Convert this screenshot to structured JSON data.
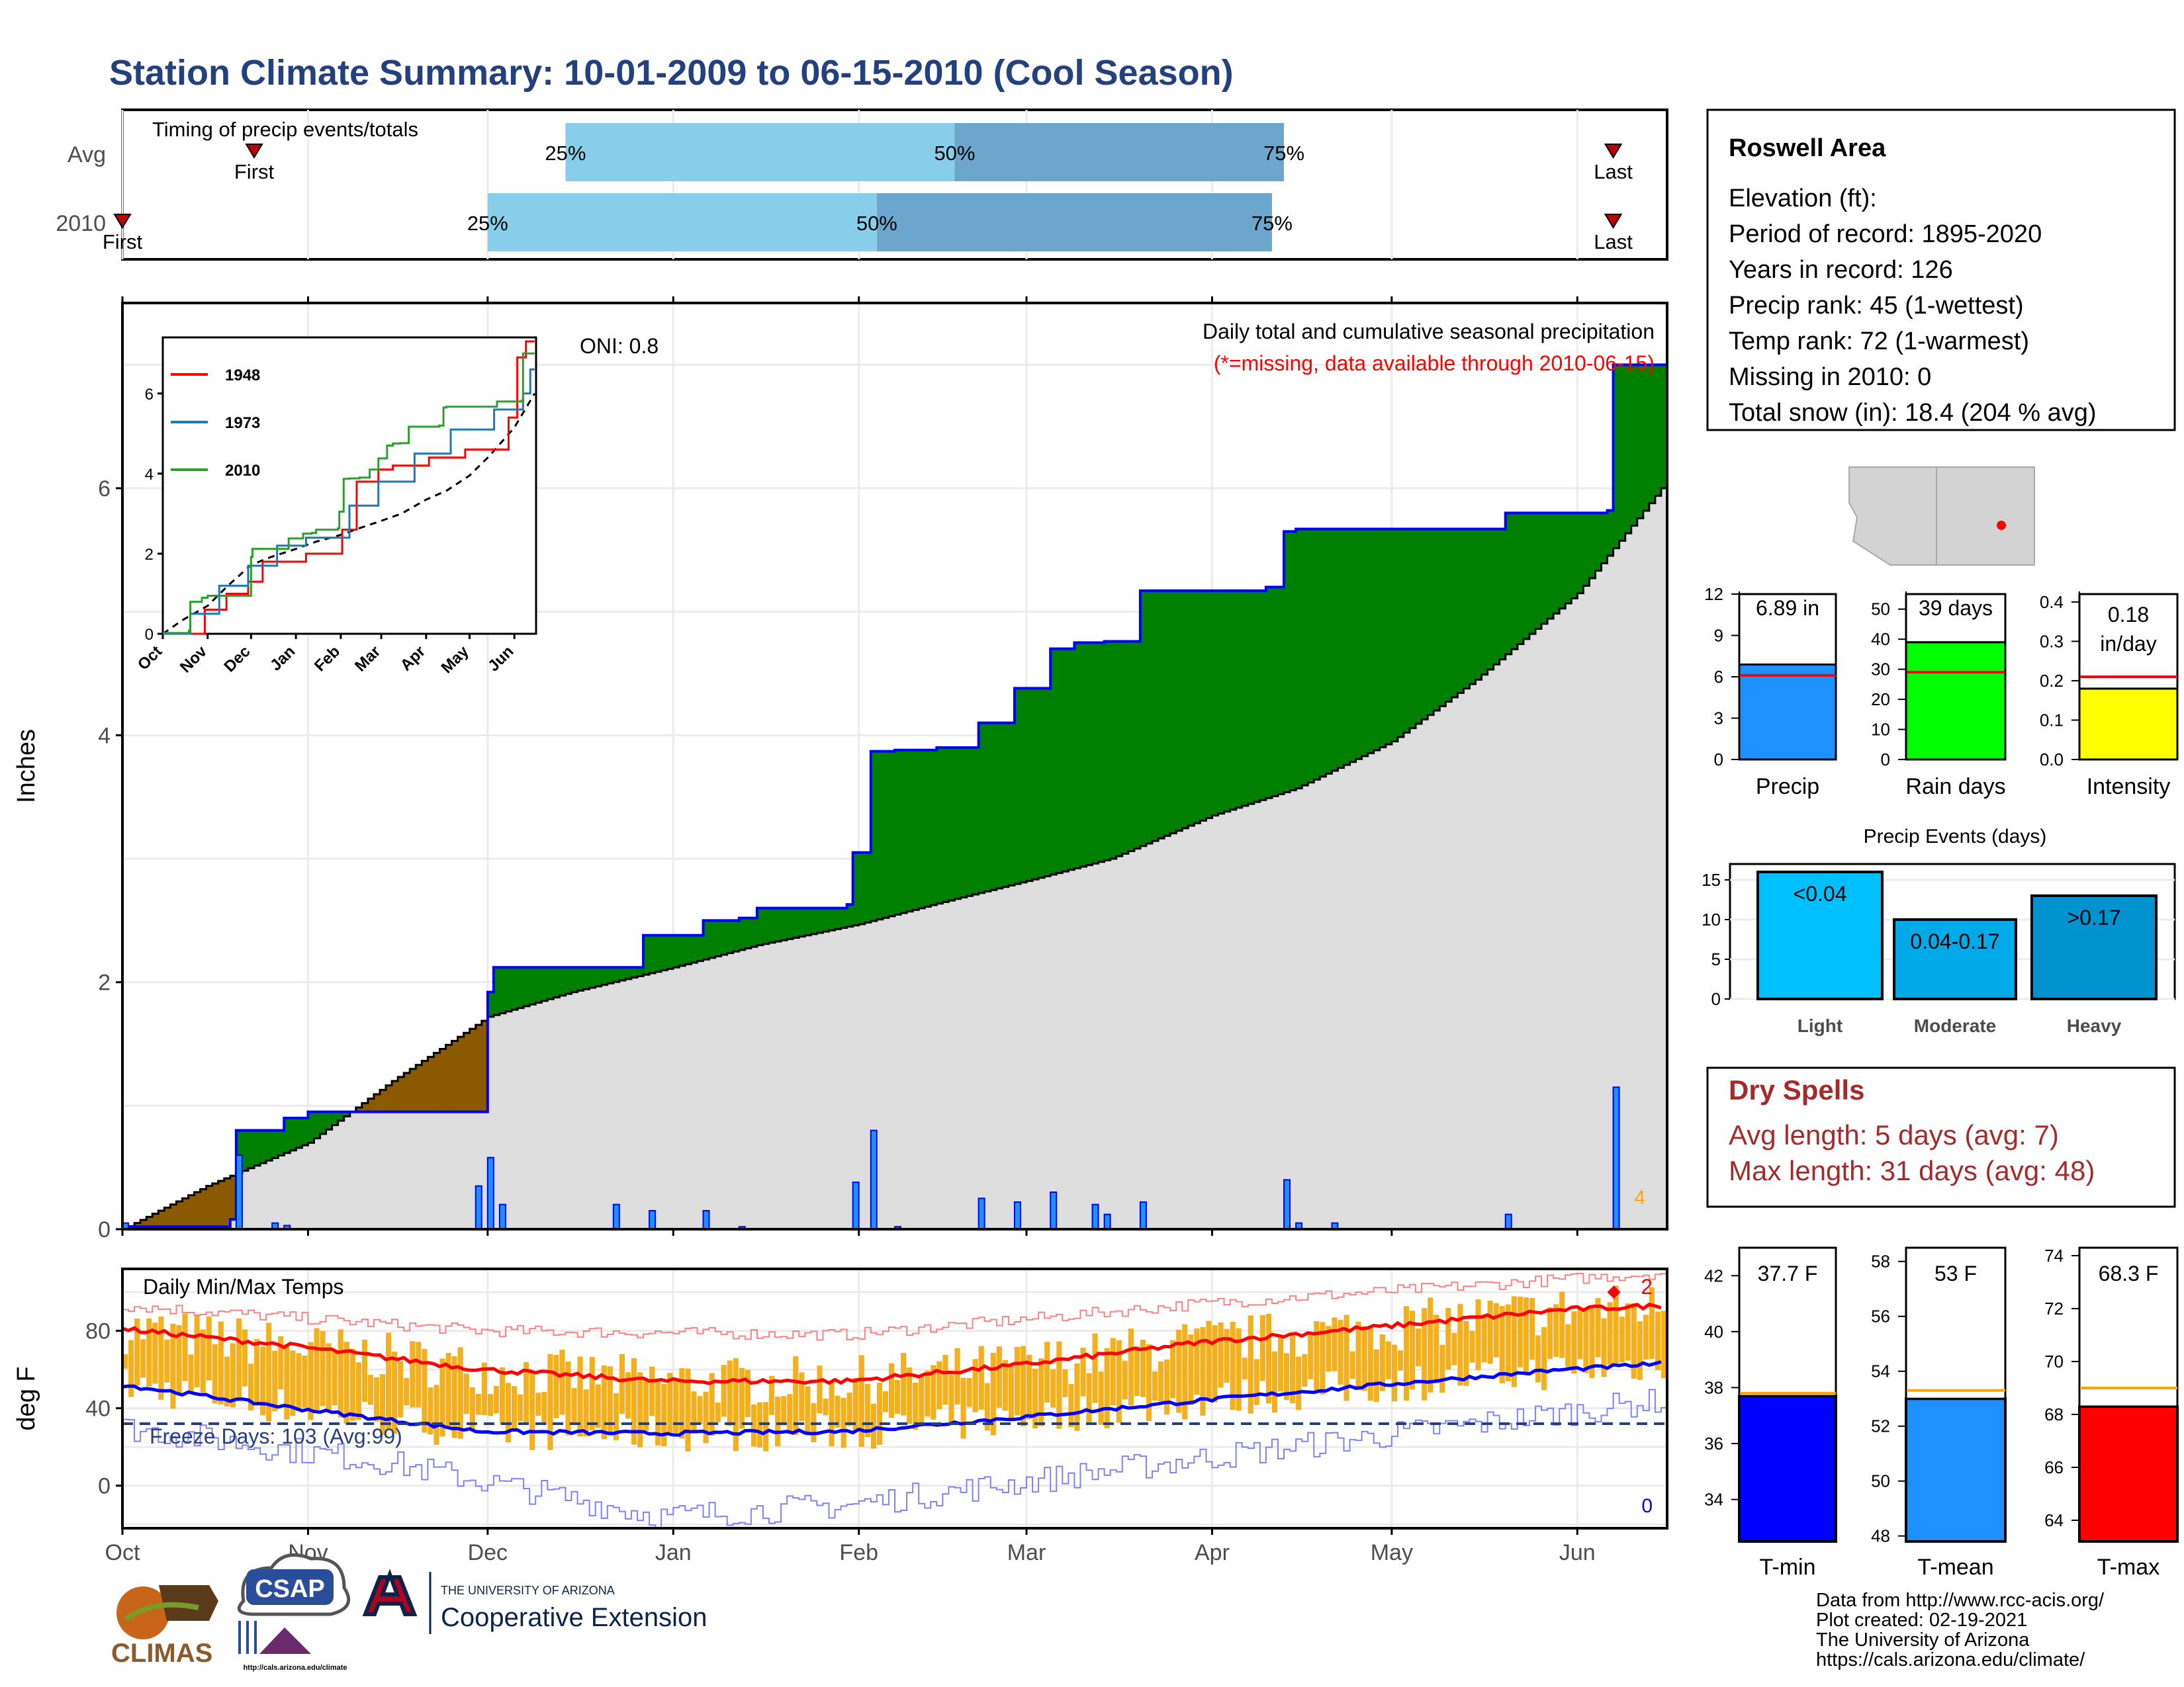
{
  "title": "Station Climate Summary: 10-01-2009 to 06-15-2010 (Cool Season)",
  "colors": {
    "title": "#24417f",
    "q1": "#87ceeb",
    "q2": "#6ca6cd",
    "deficit": "#8b5a00",
    "surplus": "#008000",
    "normal_fill": "#dedede",
    "cumulative_line": "#0000ff",
    "missing_note": "#ff0000",
    "freeze_line": "#24417f",
    "dry_spells": "#a52a2a",
    "daily_bar": "#0000ff",
    "daily_bar_fill": "#1e90ff",
    "temp_bar": "#f2b01e",
    "tmax_line": "#ff0000",
    "tmin_line": "#0000ff"
  },
  "timing": {
    "label": "Timing of precip events/totals",
    "rows": [
      "Avg",
      "2010"
    ],
    "avg": {
      "first": "Oct 23",
      "q25": "Dec 14",
      "q50": "Feb 17",
      "q75": "Apr 13",
      "last": "Jun 7"
    },
    "y2010": {
      "first": "Oct 1",
      "q25": "Dec 1",
      "q50": "Feb 4",
      "q75": "Apr 11",
      "last": "Jun 7"
    },
    "labels": {
      "first": "First",
      "last": "Last",
      "p25": "25%",
      "p50": "50%",
      "p75": "75%"
    }
  },
  "precip_panel": {
    "ylabel": "Inches",
    "oni": "ONI: 0.8",
    "note1": "Daily total and cumulative seasonal precipitation",
    "note2": "(*=missing, data available through 2010-06-15)",
    "extreme_count": "4",
    "yticks": [
      0,
      2,
      4,
      6
    ],
    "ylim": [
      0,
      7.5
    ]
  },
  "inset": {
    "yticks": [
      0,
      2,
      4,
      6
    ],
    "xticks": [
      "Oct",
      "Nov",
      "Dec",
      "Jan",
      "Feb",
      "Mar",
      "Apr",
      "May",
      "Jun"
    ],
    "legend": [
      {
        "name": "1948",
        "color": "#ff0000"
      },
      {
        "name": "1973",
        "color": "#1f77b4"
      },
      {
        "name": "2010",
        "color": "#2ca02c"
      }
    ]
  },
  "temp_panel": {
    "ylabel": "deg F",
    "label": "Daily Min/Max Temps",
    "freeze": "Freeze Days: 103 (Avg:99)",
    "freeze_level": 32,
    "record_high_count": "2",
    "record_low_count": "0",
    "yticks": [
      0,
      40,
      80
    ],
    "ylim": [
      -22,
      112
    ]
  },
  "months": [
    "Oct",
    "Nov",
    "Dec",
    "Jan",
    "Feb",
    "Mar",
    "Apr",
    "May",
    "Jun"
  ],
  "info": {
    "station": "Roswell Area",
    "lines": [
      "Elevation (ft):",
      "Period of record: 1895-2020",
      "Years in record: 126",
      "Precip rank: 45 (1-wettest)",
      "Temp rank: 72 (1-warmest)",
      "Missing in 2010: 0",
      "Total snow (in): 18.4 (204 % avg)"
    ]
  },
  "mini_precip": [
    {
      "label": "Precip",
      "value": 6.89,
      "value_text": "6.89 in",
      "avg": 6.1,
      "ymax": 12,
      "ticks": [
        0,
        3,
        6,
        9,
        12
      ],
      "color": "#1e90ff"
    },
    {
      "label": "Rain days",
      "value": 39,
      "value_text": "39 days",
      "avg": 29,
      "ymax": 55,
      "ticks": [
        0,
        10,
        20,
        30,
        40,
        50
      ],
      "color": "#00ff00"
    },
    {
      "label": "Intensity",
      "value": 0.18,
      "value_text": "0.18 in/day",
      "avg": 0.21,
      "ymax": 0.42,
      "ticks": [
        "0.0",
        "0.1",
        "0.2",
        "0.3",
        "0.4"
      ],
      "color": "#ffff00"
    }
  ],
  "events": {
    "title": "Precip Events (days)",
    "categories": [
      "Light",
      "Moderate",
      "Heavy"
    ],
    "ranges": [
      "<0.04",
      "0.04-0.17",
      ">0.17"
    ],
    "values": [
      16,
      10,
      13
    ],
    "colors": [
      "#00bfff",
      "#00a9e8",
      "#0093d0"
    ],
    "ymax": 17,
    "ticks": [
      0,
      5,
      10,
      15
    ]
  },
  "dry_spells": {
    "title": "Dry Spells",
    "lines": [
      "Avg length: 5 days (avg: 7)",
      "Max length: 31 days (avg: 48)"
    ]
  },
  "mini_temp": [
    {
      "label": "T-min",
      "value": 37.7,
      "value_text": "37.7 F",
      "avg": 37.8,
      "ymin": 32.5,
      "ymax": 43,
      "ticks": [
        34,
        36,
        38,
        40,
        42
      ],
      "color": "#0000ff"
    },
    {
      "label": "T-mean",
      "value": 53,
      "value_text": "53 F",
      "avg": 53.3,
      "ymin": 47.8,
      "ymax": 58.5,
      "ticks": [
        48,
        50,
        52,
        54,
        56,
        58
      ],
      "color": "#1e90ff"
    },
    {
      "label": "T-max",
      "value": 68.3,
      "value_text": "68.3 F",
      "avg": 69.0,
      "ymin": 63.2,
      "ymax": 74.3,
      "ticks": [
        64,
        66,
        68,
        70,
        72,
        74
      ],
      "color": "#ff0000"
    }
  ],
  "footer": [
    "Data from http://www.rcc-acis.org/",
    "Plot created: 02-19-2021",
    "The University of Arizona",
    "https://cals.arizona.edu/climate/"
  ],
  "logos": {
    "climas": "CLIMAS",
    "csap": "CSAP",
    "csap_url": "http://cals.arizona.edu/climate",
    "ua_line1": "THE UNIVERSITY OF ARIZONA",
    "ua_line2": "Cooperative Extension"
  },
  "chart_data": [
    {
      "type": "bar",
      "title": "Timing of precip events/totals",
      "categories": [
        "Avg",
        "2010"
      ],
      "series": [
        {
          "name": "First",
          "values": [
            "Oct 23",
            "Oct 1"
          ]
        },
        {
          "name": "25%",
          "values": [
            "Dec 14",
            "Dec 1"
          ]
        },
        {
          "name": "50%",
          "values": [
            "Feb 17",
            "Feb 4"
          ]
        },
        {
          "name": "75%",
          "values": [
            "Apr 13",
            "Apr 11"
          ]
        },
        {
          "name": "Last",
          "values": [
            "Jun 7",
            "Jun 7"
          ]
        }
      ]
    },
    {
      "type": "area",
      "title": "Daily total and cumulative seasonal precipitation",
      "ylabel": "Inches",
      "ylim": [
        0,
        7.5
      ],
      "cumulative_2010": [
        [
          "10-01",
          0.02
        ],
        [
          "10-19",
          0.08
        ],
        [
          "10-20",
          0.8
        ],
        [
          "10-28",
          0.9
        ],
        [
          "11-01",
          0.95
        ],
        [
          "11-30",
          0.95
        ],
        [
          "12-01",
          1.92
        ],
        [
          "12-02",
          2.12
        ],
        [
          "12-22",
          2.12
        ],
        [
          "12-27",
          2.38
        ],
        [
          "01-06",
          2.5
        ],
        [
          "01-12",
          2.52
        ],
        [
          "01-15",
          2.6
        ],
        [
          "01-30",
          2.63
        ],
        [
          "01-31",
          3.05
        ],
        [
          "02-03",
          3.87
        ],
        [
          "02-07",
          3.88
        ],
        [
          "02-14",
          3.9
        ],
        [
          "02-21",
          4.1
        ],
        [
          "02-27",
          4.38
        ],
        [
          "03-05",
          4.7
        ],
        [
          "03-09",
          4.75
        ],
        [
          "03-14",
          4.76
        ],
        [
          "03-20",
          5.17
        ],
        [
          "04-10",
          5.2
        ],
        [
          "04-13",
          5.65
        ],
        [
          "04-15",
          5.67
        ],
        [
          "05-20",
          5.8
        ],
        [
          "06-06",
          5.82
        ],
        [
          "06-07",
          7.0
        ],
        [
          "06-15",
          7.0
        ]
      ],
      "normal_cumulative": [
        [
          "10-01",
          0.0
        ],
        [
          "10-15",
          0.35
        ],
        [
          "11-01",
          0.7
        ],
        [
          "11-15",
          1.2
        ],
        [
          "12-01",
          1.72
        ],
        [
          "12-15",
          1.92
        ],
        [
          "01-01",
          2.12
        ],
        [
          "01-15",
          2.3
        ],
        [
          "02-01",
          2.47
        ],
        [
          "02-15",
          2.65
        ],
        [
          "03-01",
          2.82
        ],
        [
          "03-15",
          3.0
        ],
        [
          "04-01",
          3.35
        ],
        [
          "04-15",
          3.57
        ],
        [
          "05-01",
          3.95
        ],
        [
          "05-15",
          4.45
        ],
        [
          "06-01",
          5.15
        ],
        [
          "06-15",
          6.0
        ]
      ],
      "daily_2010": [
        [
          "10-01",
          0.05
        ],
        [
          "10-20",
          0.6
        ],
        [
          "10-26",
          0.05
        ],
        [
          "10-28",
          0.03
        ],
        [
          "11-29",
          0.35
        ],
        [
          "12-01",
          0.58
        ],
        [
          "12-03",
          0.2
        ],
        [
          "12-22",
          0.2
        ],
        [
          "12-28",
          0.15
        ],
        [
          "01-06",
          0.15
        ],
        [
          "01-12",
          0.02
        ],
        [
          "01-31",
          0.38
        ],
        [
          "02-03",
          0.8
        ],
        [
          "02-07",
          0.02
        ],
        [
          "02-21",
          0.25
        ],
        [
          "02-27",
          0.22
        ],
        [
          "03-05",
          0.3
        ],
        [
          "03-12",
          0.2
        ],
        [
          "03-14",
          0.12
        ],
        [
          "03-20",
          0.22
        ],
        [
          "04-13",
          0.4
        ],
        [
          "04-15",
          0.05
        ],
        [
          "04-21",
          0.05
        ],
        [
          "05-20",
          0.12
        ],
        [
          "06-07",
          1.15
        ]
      ]
    },
    {
      "type": "line",
      "title": "Daily Min/Max Temps",
      "ylabel": "deg F",
      "ylim": [
        -22,
        112
      ],
      "series": [
        {
          "name": "avg_max",
          "values": [
            [
              1,
              81
            ],
            [
              30,
              72
            ],
            [
              61,
              60
            ],
            [
              91,
              54
            ],
            [
              122,
              54
            ],
            [
              150,
              62
            ],
            [
              181,
              74
            ],
            [
              211,
              82
            ],
            [
              242,
              91
            ],
            [
              258,
              93
            ]
          ]
        },
        {
          "name": "avg_min",
          "values": [
            [
              1,
              52
            ],
            [
              30,
              40
            ],
            [
              61,
              28
            ],
            [
              91,
              27
            ],
            [
              122,
              28
            ],
            [
              150,
              35
            ],
            [
              181,
              44
            ],
            [
              211,
              52
            ],
            [
              242,
              60
            ],
            [
              258,
              63
            ]
          ]
        },
        {
          "name": "record_high",
          "values": [
            [
              1,
              93
            ],
            [
              61,
              80
            ],
            [
              122,
              78
            ],
            [
              181,
              94
            ],
            [
              258,
              110
            ]
          ]
        },
        {
          "name": "record_low",
          "values": [
            [
              1,
              30
            ],
            [
              45,
              12
            ],
            [
              91,
              -16
            ],
            [
              122,
              -10
            ],
            [
              181,
              14
            ],
            [
              258,
              44
            ]
          ]
        }
      ],
      "freeze_days": 103,
      "freeze_days_avg": 99
    },
    {
      "type": "bar",
      "categories": [
        "Precip",
        "Rain days",
        "Intensity"
      ],
      "values": [
        6.89,
        39,
        0.18
      ]
    },
    {
      "type": "bar",
      "title": "Precip Events (days)",
      "categories": [
        "Light",
        "Moderate",
        "Heavy"
      ],
      "values": [
        16,
        10,
        13
      ]
    },
    {
      "type": "bar",
      "categories": [
        "T-min",
        "T-mean",
        "T-max"
      ],
      "values": [
        37.7,
        53,
        68.3
      ]
    }
  ]
}
